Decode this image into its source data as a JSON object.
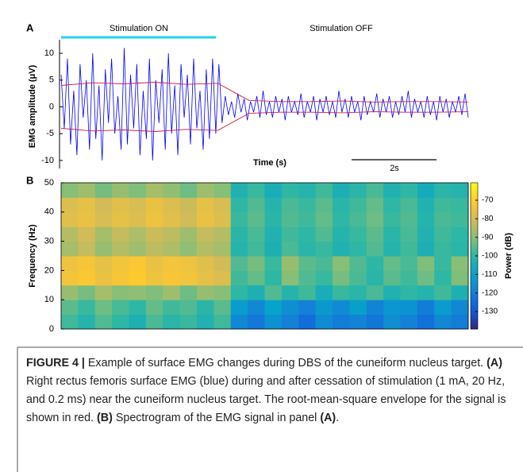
{
  "chart_data": [
    {
      "type": "line",
      "panel_label": "A",
      "ylabel": "EMG amplitude (μV)",
      "xlabel": "Time (s)",
      "stim_on_label": "Stimulation ON",
      "stim_off_label": "Stimulation OFF",
      "scalebar_label": "2s",
      "ylim": [
        -11.5,
        11.5
      ],
      "yticks": [
        -10,
        -5,
        0,
        5,
        10
      ],
      "series": [
        {
          "color": "#0000ff",
          "values": [
            6,
            -4,
            9,
            -7,
            3,
            -9,
            8,
            -2,
            5,
            -8,
            10,
            -6,
            4,
            -10,
            7,
            -3,
            9,
            -5,
            2,
            -8,
            11,
            -7,
            6,
            -4,
            8,
            -9,
            3,
            -6,
            9,
            -10,
            5,
            -3,
            7,
            -8,
            10,
            -5,
            4,
            -9,
            8,
            -2,
            6,
            -7,
            9,
            -4,
            3,
            -8,
            7,
            -6,
            9,
            -5,
            8,
            -3,
            2,
            -1.5,
            1,
            -2,
            2.5,
            -1,
            1.5,
            -2.5,
            1,
            -1,
            2,
            -2,
            3,
            -1.5,
            1,
            -2,
            2,
            -1,
            1.5,
            -2.5,
            2,
            -1,
            1,
            -1.5,
            2.5,
            -2,
            1,
            -1,
            2,
            -2.5,
            1.5,
            -1,
            2,
            -1.5,
            1,
            -2,
            3,
            -1,
            1.5,
            -2,
            2,
            -1,
            1,
            -2.5,
            2,
            -1.5,
            1,
            -1,
            2.5,
            -2,
            1.5,
            -1,
            2,
            -2,
            1,
            -1.5,
            2,
            -1,
            3,
            -2,
            1.5,
            -1,
            1,
            -2,
            2,
            -1.5,
            1,
            -2.5,
            2,
            -1,
            1.5,
            -2,
            1,
            -1,
            2,
            -1.5,
            2.5,
            -2
          ]
        },
        {
          "color": "#d0203a",
          "values": [
            4,
            4.5,
            4.3,
            4.6,
            4.2,
            4.4,
            1.2,
            1,
            1,
            1.1,
            0.9,
            1,
            1,
            0.9
          ]
        },
        {
          "color": "#d0203a",
          "values": [
            -4,
            -4.5,
            -4.3,
            -4.6,
            -4.2,
            -4.4,
            -1.2,
            -1,
            -1,
            -1.1,
            -0.9,
            -1,
            -1,
            -0.9
          ]
        }
      ]
    },
    {
      "type": "heatmap",
      "panel_label": "B",
      "ylabel": "Frequency (Hz)",
      "colorbar_label": "Power (dB)",
      "ylim": [
        0,
        50
      ],
      "yticks": [
        0,
        10,
        20,
        30,
        40,
        50
      ],
      "clim": [
        -139.4,
        -60.6
      ],
      "cticks": [
        -70,
        -80,
        -90,
        -100,
        -110,
        -120,
        -130
      ],
      "colormap": [
        "#352a87",
        "#0f5cdd",
        "#1481d6",
        "#06a4ca",
        "#2eb7a4",
        "#87bf77",
        "#d1bb59",
        "#fec832",
        "#f9fb0e"
      ],
      "values": [
        [
          -98,
          -102,
          -96,
          -100,
          -104,
          -97,
          -101,
          -99,
          -103,
          -98,
          -118,
          -122,
          -115,
          -120,
          -125,
          -117,
          -121,
          -119,
          -123,
          -116,
          -120,
          -124,
          -118,
          -121
        ],
        [
          -95,
          -99,
          -93,
          -97,
          -100,
          -94,
          -98,
          -96,
          -101,
          -95,
          -112,
          -118,
          -110,
          -116,
          -120,
          -113,
          -117,
          -111,
          -119,
          -114,
          -115,
          -121,
          -112,
          -118
        ],
        [
          -88,
          -92,
          -86,
          -90,
          -89,
          -91,
          -87,
          -93,
          -88,
          -90,
          -100,
          -104,
          -96,
          -102,
          -98,
          -105,
          -99,
          -101,
          -97,
          -103,
          -100,
          -102,
          -98,
          -104
        ],
        [
          -73,
          -71,
          -75,
          -72,
          -70,
          -74,
          -72,
          -73,
          -76,
          -78,
          -98,
          -94,
          -100,
          -90,
          -96,
          -99,
          -92,
          -97,
          -101,
          -95,
          -98,
          -93,
          -100,
          -91
        ],
        [
          -74,
          -72,
          -76,
          -73,
          -71,
          -75,
          -73,
          -74,
          -77,
          -80,
          -96,
          -92,
          -99,
          -88,
          -95,
          -97,
          -90,
          -96,
          -100,
          -94,
          -97,
          -91,
          -99,
          -90
        ],
        [
          -86,
          -82,
          -88,
          -84,
          -87,
          -83,
          -85,
          -89,
          -84,
          -86,
          -102,
          -98,
          -104,
          -97,
          -101,
          -99,
          -103,
          -100,
          -96,
          -102,
          -98,
          -104,
          -99,
          -101
        ],
        [
          -84,
          -80,
          -86,
          -82,
          -85,
          -81,
          -83,
          -87,
          -82,
          -84,
          -101,
          -97,
          -103,
          -98,
          -100,
          -96,
          -102,
          -99,
          -95,
          -101,
          -97,
          -103,
          -98,
          -100
        ],
        [
          -77,
          -75,
          -79,
          -76,
          -78,
          -74,
          -77,
          -80,
          -75,
          -78,
          -99,
          -95,
          -101,
          -96,
          -98,
          -94,
          -100,
          -97,
          -93,
          -99,
          -96,
          -102,
          -97,
          -98
        ],
        [
          -78,
          -76,
          -80,
          -77,
          -79,
          -75,
          -78,
          -81,
          -76,
          -79,
          -100,
          -96,
          -102,
          -97,
          -99,
          -95,
          -101,
          -98,
          -94,
          -100,
          -97,
          -103,
          -98,
          -99
        ],
        [
          -90,
          -87,
          -92,
          -88,
          -91,
          -86,
          -89,
          -93,
          -87,
          -90,
          -103,
          -99,
          -105,
          -100,
          -102,
          -98,
          -104,
          -101,
          -97,
          -103,
          -100,
          -106,
          -101,
          -102
        ]
      ]
    }
  ],
  "caption": [
    {
      "text": "FIGURE 4 |",
      "bold": true
    },
    {
      "text": " Example of surface EMG changes during DBS of the cuneiform nucleus target. "
    },
    {
      "text": "(A)",
      "bold": true
    },
    {
      "text": " Right rectus femoris surface EMG (blue) during and after cessation of stimulation (1 mA, 20 Hz, and 0.2 ms) near the cuneiform nucleus target. The root-mean-square envelope for the signal is shown in red. "
    },
    {
      "text": "(B)",
      "bold": true
    },
    {
      "text": " Spectrogram of the EMG signal in panel "
    },
    {
      "text": "(A)",
      "bold": true
    },
    {
      "text": "."
    }
  ]
}
